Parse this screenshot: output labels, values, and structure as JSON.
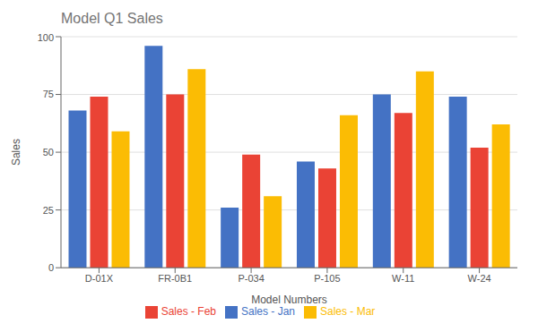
{
  "chart_data": {
    "type": "bar",
    "title": "Model Q1 Sales",
    "xlabel": "Model Numbers",
    "ylabel": "Sales",
    "categories": [
      "D-01X",
      "FR-0B1",
      "P-034",
      "P-105",
      "W-11",
      "W-24"
    ],
    "series": [
      {
        "name": "Sales - Jan",
        "color": "#4472C4",
        "values": [
          68,
          96,
          26,
          46,
          75,
          74
        ]
      },
      {
        "name": "Sales - Feb",
        "color": "#EA4335",
        "values": [
          74,
          75,
          49,
          43,
          67,
          52
        ]
      },
      {
        "name": "Sales - Mar",
        "color": "#FBBC04",
        "values": [
          59,
          86,
          31,
          66,
          85,
          62
        ]
      }
    ],
    "ylim": [
      0,
      100
    ],
    "yticks": [
      0,
      25,
      50,
      75,
      100
    ],
    "grid": true,
    "legend": "bottom"
  }
}
